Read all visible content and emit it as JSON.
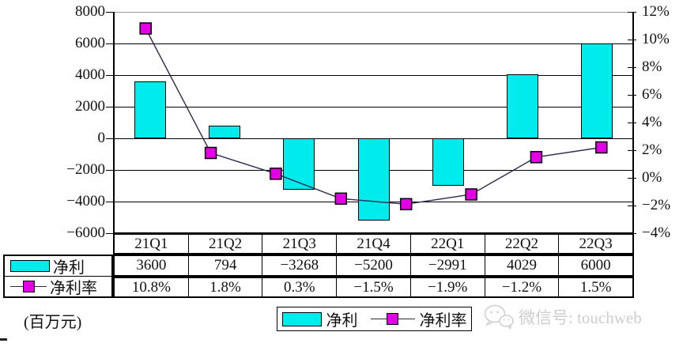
{
  "chart_data": {
    "type": "bar+line combo, dual axis",
    "categories": [
      "21Q1",
      "21Q2",
      "21Q3",
      "21Q4",
      "22Q1",
      "22Q2",
      "22Q3"
    ],
    "series": [
      {
        "name": "净利",
        "type": "bar",
        "axis": "left",
        "values": [
          3600,
          794,
          -3268,
          -5200,
          -2991,
          4029,
          6000
        ],
        "color": "#00ecec"
      },
      {
        "name": "净利率",
        "type": "line",
        "axis": "right",
        "values_pct": [
          10.8,
          1.8,
          0.3,
          -1.5,
          -1.9,
          -1.2,
          1.5
        ],
        "plotted_points_pct": [
          10.8,
          1.8,
          0.3,
          -1.5,
          -1.9,
          -1.2,
          1.5,
          2.2
        ],
        "marker_color": "#e400e4",
        "line_color": "#2b2b52"
      }
    ],
    "left_axis": {
      "ticks": [
        8000,
        6000,
        4000,
        2000,
        0,
        -2000,
        -4000,
        -6000
      ],
      "max": 8000,
      "min": -6000,
      "step": 2000
    },
    "right_axis": {
      "ticks": [
        12,
        10,
        8,
        6,
        4,
        2,
        0,
        -2,
        -4
      ],
      "max": 12,
      "min": -4,
      "step": 2,
      "suffix": "%"
    },
    "grid": "horizontal",
    "legend_position": "bottom",
    "unit_label": "(百万元)"
  },
  "table": {
    "header": [
      "21Q1",
      "21Q2",
      "21Q3",
      "21Q4",
      "22Q1",
      "22Q2",
      "22Q3"
    ],
    "rows": [
      {
        "label": "净利",
        "values": [
          "3600",
          "794",
          "-3268",
          "-5200",
          "-2991",
          "4029",
          "6000"
        ]
      },
      {
        "label": "净利率",
        "values": [
          "10.8%",
          "1.8%",
          "0.3%",
          "-1.5%",
          "-1.9%",
          "-1.2%",
          "1.5%"
        ]
      }
    ]
  },
  "legend": {
    "bar_label": "净利",
    "line_label": "净利率"
  },
  "footer": {
    "unit": "(百万元)",
    "watermark": "微信号: touchweb"
  },
  "icons": {
    "watermark_icon": "wechat-icon"
  },
  "colors": {
    "bar": "#00ecec",
    "marker": "#e400e4",
    "line": "#2b2b52",
    "watermark": "#cdcdcd",
    "grid": "#000000"
  }
}
